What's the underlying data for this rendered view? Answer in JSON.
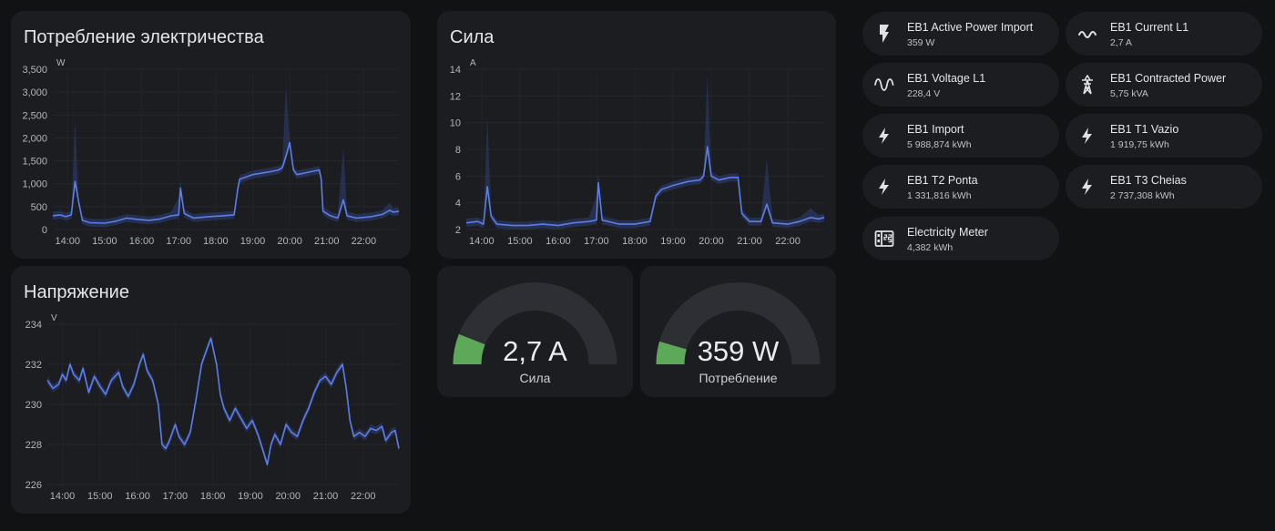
{
  "colors": {
    "background": "#111214",
    "card": "#1c1d21",
    "line": "#5b7ee8",
    "band": "#2f3e74",
    "gauge_green": "#5ea85a",
    "gauge_track": "#2e2f35"
  },
  "power_card": {
    "title": "Потребление электричества",
    "chart_data": {
      "type": "line",
      "unit": "W",
      "ylim": [
        0,
        3500
      ],
      "yticks": [
        "0",
        "500",
        "1,000",
        "1,500",
        "2,000",
        "2,500",
        "3,000",
        "3,500"
      ],
      "ytick_values": [
        0,
        500,
        1000,
        1500,
        2000,
        2500,
        3000,
        3500
      ],
      "xticks": [
        "14:00",
        "15:00",
        "16:00",
        "17:00",
        "18:00",
        "19:00",
        "20:00",
        "21:00",
        "22:00"
      ],
      "xlim": [
        13.6,
        22.95
      ],
      "series": [
        {
          "points": [
            [
              13.6,
              300
            ],
            [
              13.8,
              320
            ],
            [
              13.95,
              280
            ],
            [
              14.1,
              320
            ],
            [
              14.2,
              1050
            ],
            [
              14.3,
              600
            ],
            [
              14.4,
              200
            ],
            [
              14.6,
              150
            ],
            [
              15.0,
              140
            ],
            [
              15.3,
              180
            ],
            [
              15.6,
              250
            ],
            [
              15.9,
              220
            ],
            [
              16.2,
              200
            ],
            [
              16.5,
              230
            ],
            [
              16.8,
              300
            ],
            [
              17.0,
              320
            ],
            [
              17.05,
              900
            ],
            [
              17.15,
              350
            ],
            [
              17.4,
              250
            ],
            [
              17.8,
              280
            ],
            [
              18.2,
              300
            ],
            [
              18.5,
              320
            ],
            [
              18.6,
              900
            ],
            [
              18.65,
              1100
            ],
            [
              19.0,
              1200
            ],
            [
              19.4,
              1250
            ],
            [
              19.7,
              1300
            ],
            [
              19.8,
              1350
            ],
            [
              19.9,
              1600
            ],
            [
              20.0,
              1900
            ],
            [
              20.1,
              1300
            ],
            [
              20.2,
              1200
            ],
            [
              20.5,
              1250
            ],
            [
              20.8,
              1300
            ],
            [
              20.85,
              1100
            ],
            [
              20.9,
              400
            ],
            [
              21.1,
              300
            ],
            [
              21.3,
              250
            ],
            [
              21.45,
              650
            ],
            [
              21.55,
              300
            ],
            [
              21.8,
              250
            ],
            [
              22.2,
              280
            ],
            [
              22.5,
              330
            ],
            [
              22.7,
              420
            ],
            [
              22.8,
              380
            ],
            [
              22.95,
              400
            ]
          ],
          "max_points": [
            [
              14.2,
              2300
            ],
            [
              17.05,
              1000
            ],
            [
              19.9,
              3050
            ],
            [
              21.45,
              1700
            ],
            [
              22.7,
              500
            ]
          ]
        }
      ]
    }
  },
  "current_card": {
    "title": "Сила",
    "chart_data": {
      "type": "line",
      "unit": "A",
      "ylim": [
        2,
        14
      ],
      "yticks": [
        "2",
        "4",
        "6",
        "8",
        "10",
        "12",
        "14"
      ],
      "ytick_values": [
        2,
        4,
        6,
        8,
        10,
        12,
        14
      ],
      "xticks": [
        "14:00",
        "15:00",
        "16:00",
        "17:00",
        "18:00",
        "19:00",
        "20:00",
        "21:00",
        "22:00"
      ],
      "xlim": [
        13.6,
        22.95
      ],
      "series": [
        {
          "points": [
            [
              13.6,
              2.5
            ],
            [
              13.9,
              2.6
            ],
            [
              14.05,
              2.4
            ],
            [
              14.15,
              5.2
            ],
            [
              14.25,
              3.0
            ],
            [
              14.4,
              2.4
            ],
            [
              14.8,
              2.3
            ],
            [
              15.2,
              2.3
            ],
            [
              15.6,
              2.4
            ],
            [
              16.0,
              2.3
            ],
            [
              16.4,
              2.5
            ],
            [
              16.8,
              2.6
            ],
            [
              17.0,
              2.7
            ],
            [
              17.05,
              5.5
            ],
            [
              17.15,
              2.7
            ],
            [
              17.6,
              2.4
            ],
            [
              18.0,
              2.4
            ],
            [
              18.4,
              2.6
            ],
            [
              18.55,
              4.5
            ],
            [
              18.7,
              5.0
            ],
            [
              19.0,
              5.3
            ],
            [
              19.4,
              5.6
            ],
            [
              19.7,
              5.7
            ],
            [
              19.8,
              6.0
            ],
            [
              19.9,
              8.2
            ],
            [
              20.0,
              6.0
            ],
            [
              20.2,
              5.7
            ],
            [
              20.5,
              5.9
            ],
            [
              20.7,
              5.9
            ],
            [
              20.8,
              3.2
            ],
            [
              21.0,
              2.6
            ],
            [
              21.3,
              2.6
            ],
            [
              21.45,
              3.9
            ],
            [
              21.6,
              2.5
            ],
            [
              22.0,
              2.4
            ],
            [
              22.3,
              2.6
            ],
            [
              22.6,
              2.9
            ],
            [
              22.8,
              2.8
            ],
            [
              22.95,
              2.9
            ]
          ],
          "max_points": [
            [
              14.15,
              10.2
            ],
            [
              17.05,
              6.0
            ],
            [
              19.9,
              13.3
            ],
            [
              21.45,
              7.0
            ],
            [
              22.6,
              3.3
            ]
          ]
        }
      ]
    }
  },
  "voltage_card": {
    "title": "Напряжение",
    "chart_data": {
      "type": "line",
      "unit": "V",
      "ylim": [
        226,
        234
      ],
      "yticks": [
        "226",
        "228",
        "230",
        "232",
        "234"
      ],
      "ytick_values": [
        226,
        228,
        230,
        232,
        234
      ],
      "xticks": [
        "14:00",
        "15:00",
        "16:00",
        "17:00",
        "18:00",
        "19:00",
        "20:00",
        "21:00",
        "22:00"
      ],
      "xlim": [
        13.6,
        22.95
      ],
      "series": [
        {
          "points": [
            [
              13.6,
              231.2
            ],
            [
              13.75,
              230.8
            ],
            [
              13.9,
              231.0
            ],
            [
              14.0,
              231.5
            ],
            [
              14.1,
              231.2
            ],
            [
              14.2,
              232.0
            ],
            [
              14.3,
              231.5
            ],
            [
              14.45,
              231.2
            ],
            [
              14.55,
              231.8
            ],
            [
              14.7,
              230.6
            ],
            [
              14.85,
              231.4
            ],
            [
              15.0,
              230.9
            ],
            [
              15.15,
              230.5
            ],
            [
              15.3,
              231.2
            ],
            [
              15.5,
              231.6
            ],
            [
              15.6,
              230.9
            ],
            [
              15.75,
              230.4
            ],
            [
              15.9,
              231.0
            ],
            [
              16.05,
              232.0
            ],
            [
              16.15,
              232.5
            ],
            [
              16.25,
              231.7
            ],
            [
              16.4,
              231.2
            ],
            [
              16.55,
              230.0
            ],
            [
              16.65,
              228.0
            ],
            [
              16.75,
              227.8
            ],
            [
              16.85,
              228.2
            ],
            [
              17.0,
              229.0
            ],
            [
              17.1,
              228.4
            ],
            [
              17.25,
              228.0
            ],
            [
              17.4,
              228.6
            ],
            [
              17.55,
              230.2
            ],
            [
              17.7,
              232.0
            ],
            [
              17.85,
              232.8
            ],
            [
              17.95,
              233.3
            ],
            [
              18.1,
              232.0
            ],
            [
              18.2,
              230.5
            ],
            [
              18.3,
              229.8
            ],
            [
              18.45,
              229.2
            ],
            [
              18.6,
              229.8
            ],
            [
              18.75,
              229.3
            ],
            [
              18.9,
              228.8
            ],
            [
              19.05,
              229.2
            ],
            [
              19.2,
              228.5
            ],
            [
              19.35,
              227.6
            ],
            [
              19.45,
              227.0
            ],
            [
              19.55,
              228.0
            ],
            [
              19.65,
              228.5
            ],
            [
              19.8,
              228.0
            ],
            [
              19.95,
              229.0
            ],
            [
              20.1,
              228.6
            ],
            [
              20.25,
              228.4
            ],
            [
              20.4,
              229.2
            ],
            [
              20.55,
              229.8
            ],
            [
              20.7,
              230.6
            ],
            [
              20.85,
              231.2
            ],
            [
              21.0,
              231.4
            ],
            [
              21.15,
              231.0
            ],
            [
              21.3,
              231.6
            ],
            [
              21.45,
              232.0
            ],
            [
              21.55,
              230.8
            ],
            [
              21.65,
              229.2
            ],
            [
              21.75,
              228.4
            ],
            [
              21.9,
              228.6
            ],
            [
              22.05,
              228.4
            ],
            [
              22.2,
              228.8
            ],
            [
              22.35,
              228.7
            ],
            [
              22.5,
              228.9
            ],
            [
              22.6,
              228.2
            ],
            [
              22.75,
              228.6
            ],
            [
              22.85,
              228.7
            ],
            [
              22.95,
              227.8
            ]
          ]
        }
      ]
    }
  },
  "gauge_current": {
    "value": "2,7 A",
    "label": "Сила",
    "fraction": 0.12
  },
  "gauge_power": {
    "value": "359 W",
    "label": "Потребление",
    "fraction": 0.09
  },
  "entities": [
    {
      "name": "EB1 Active Power Import",
      "state": "359 W",
      "icon": "flash-icon"
    },
    {
      "name": "EB1 Current L1",
      "state": "2,7 A",
      "icon": "current-ac-icon"
    },
    {
      "name": "EB1 Voltage L1",
      "state": "228,4 V",
      "icon": "sine-wave-icon"
    },
    {
      "name": "EB1 Contracted Power",
      "state": "5,75 kVA",
      "icon": "transmission-tower-icon"
    },
    {
      "name": "EB1 Import",
      "state": "5 988,874 kWh",
      "icon": "lightning-icon"
    },
    {
      "name": "EB1 T1 Vazio",
      "state": "1 919,75 kWh",
      "icon": "lightning-icon"
    },
    {
      "name": "EB1 T2 Ponta",
      "state": "1 331,816 kWh",
      "icon": "lightning-icon"
    },
    {
      "name": "EB1 T3 Cheias",
      "state": "2 737,308 kWh",
      "icon": "lightning-icon"
    },
    {
      "name": "Electricity Meter",
      "state": "4,382 kWh",
      "icon": "meter-icon"
    }
  ]
}
